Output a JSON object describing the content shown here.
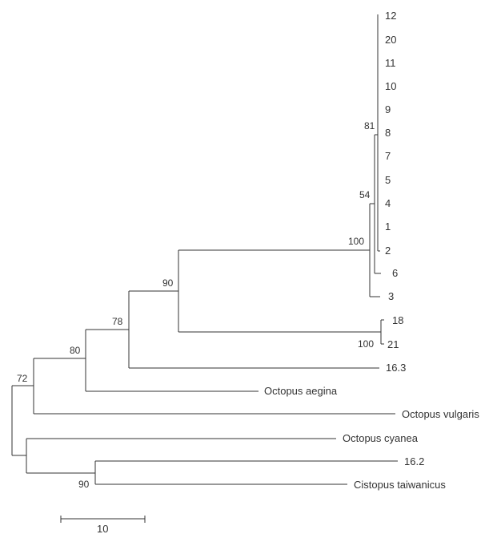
{
  "tree": {
    "tips": {
      "t12": "12",
      "t20": "20",
      "t11": "11",
      "t10": "10",
      "t9": "9",
      "t8": "8",
      "t7": "7",
      "t5": "5",
      "t4": "4",
      "t1": "1",
      "t2": "2",
      "t6": "6",
      "t3": "3",
      "t18": "18",
      "t21": "21",
      "t163": "16.3",
      "aegina": "Octopus aegina",
      "vulgaris": "Octopus vulgaris",
      "cyanea": "Octopus cyanea",
      "t162": "16.2",
      "taiwanicus": "Cistopus taiwanicus"
    },
    "bootstrap": {
      "b81": "81",
      "b54": "54",
      "b100a": "100",
      "b90a": "90",
      "b78": "78",
      "b80": "80",
      "b72": "72",
      "b100b": "100",
      "b90b": "90"
    },
    "scale_bar": {
      "label": "10"
    },
    "colors": {
      "line": "#333333",
      "text": "#333333",
      "background": "#ffffff"
    }
  }
}
